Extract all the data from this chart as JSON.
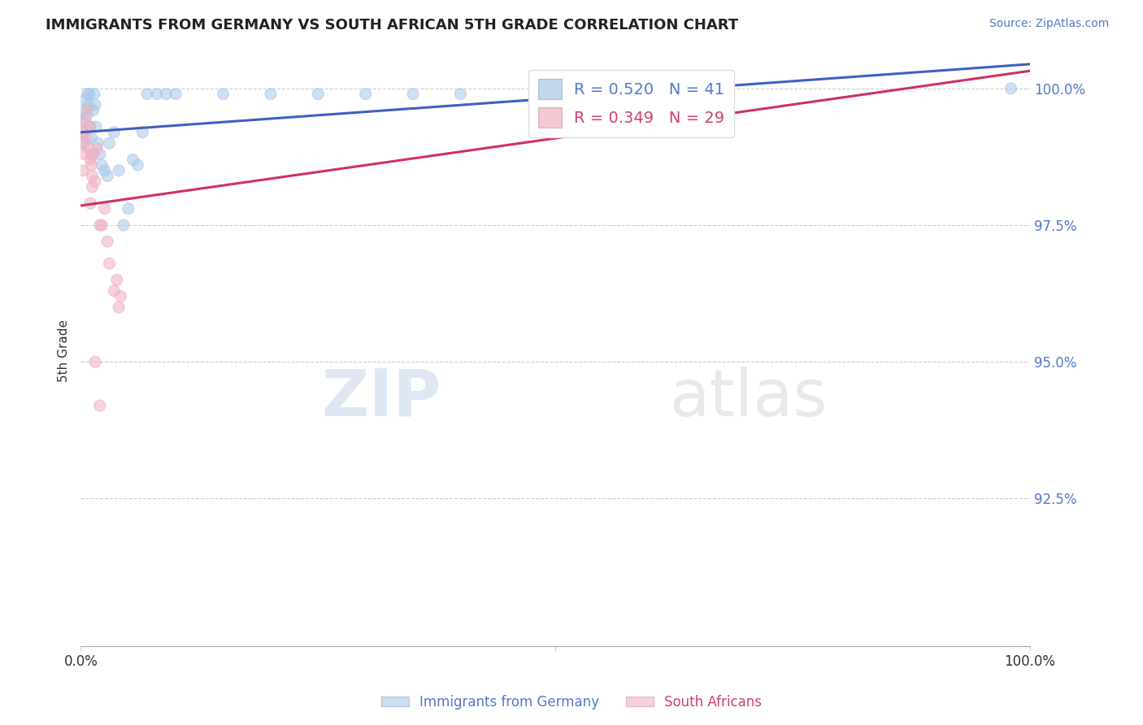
{
  "title": "IMMIGRANTS FROM GERMANY VS SOUTH AFRICAN 5TH GRADE CORRELATION CHART",
  "source": "Source: ZipAtlas.com",
  "ylabel": "5th Grade",
  "xlim": [
    0.0,
    1.0
  ],
  "ylim": [
    0.898,
    1.006
  ],
  "yticks": [
    0.925,
    0.95,
    0.975,
    1.0
  ],
  "ytick_labels": [
    "92.5%",
    "95.0%",
    "97.5%",
    "100.0%"
  ],
  "blue_R": 0.52,
  "blue_N": 41,
  "pink_R": 0.349,
  "pink_N": 29,
  "legend_label_blue": "Immigrants from Germany",
  "legend_label_pink": "South Africans",
  "blue_color": "#a8c8e8",
  "pink_color": "#f0b0c0",
  "blue_line_color": "#4060c0",
  "pink_line_color": "#d03060",
  "watermark_zip": "ZIP",
  "watermark_atlas": "atlas",
  "blue_points_x": [
    0.001,
    0.002,
    0.003,
    0.004,
    0.005,
    0.006,
    0.007,
    0.008,
    0.009,
    0.01,
    0.011,
    0.012,
    0.013,
    0.014,
    0.015,
    0.016,
    0.018,
    0.02,
    0.022,
    0.025,
    0.028,
    0.03,
    0.035,
    0.04,
    0.045,
    0.05,
    0.055,
    0.06,
    0.065,
    0.07,
    0.08,
    0.09,
    0.1,
    0.15,
    0.2,
    0.25,
    0.3,
    0.35,
    0.4,
    0.6,
    0.98
  ],
  "blue_points_y": [
    0.994,
    0.996,
    0.992,
    0.99,
    0.998,
    0.995,
    0.999,
    0.997,
    0.999,
    0.993,
    0.991,
    0.988,
    0.996,
    0.999,
    0.997,
    0.993,
    0.99,
    0.988,
    0.986,
    0.985,
    0.984,
    0.99,
    0.992,
    0.985,
    0.975,
    0.978,
    0.987,
    0.986,
    0.992,
    0.999,
    0.999,
    0.999,
    0.999,
    0.999,
    0.999,
    0.999,
    0.999,
    0.999,
    0.999,
    0.999,
    1.0
  ],
  "blue_sizes": [
    100,
    100,
    100,
    100,
    100,
    100,
    100,
    100,
    100,
    100,
    100,
    100,
    100,
    100,
    100,
    100,
    100,
    100,
    100,
    100,
    100,
    100,
    100,
    100,
    100,
    100,
    100,
    100,
    100,
    100,
    100,
    100,
    100,
    100,
    100,
    100,
    100,
    100,
    100,
    100,
    100
  ],
  "pink_points_x": [
    0.001,
    0.002,
    0.003,
    0.004,
    0.005,
    0.006,
    0.007,
    0.008,
    0.009,
    0.01,
    0.011,
    0.012,
    0.013,
    0.015,
    0.017,
    0.02,
    0.022,
    0.025,
    0.028,
    0.03,
    0.035,
    0.038,
    0.04,
    0.042,
    0.01,
    0.012,
    0.015,
    0.02,
    0.6
  ],
  "pink_points_y": [
    0.99,
    0.985,
    0.992,
    0.988,
    0.994,
    0.991,
    0.996,
    0.989,
    0.993,
    0.987,
    0.986,
    0.982,
    0.988,
    0.983,
    0.989,
    0.975,
    0.975,
    0.978,
    0.972,
    0.968,
    0.963,
    0.965,
    0.96,
    0.962,
    0.979,
    0.984,
    0.95,
    0.942,
    0.999
  ],
  "pink_sizes": [
    100,
    100,
    100,
    100,
    100,
    100,
    100,
    100,
    100,
    100,
    100,
    100,
    100,
    100,
    100,
    100,
    100,
    100,
    100,
    100,
    100,
    100,
    100,
    100,
    100,
    100,
    100,
    100,
    100
  ]
}
